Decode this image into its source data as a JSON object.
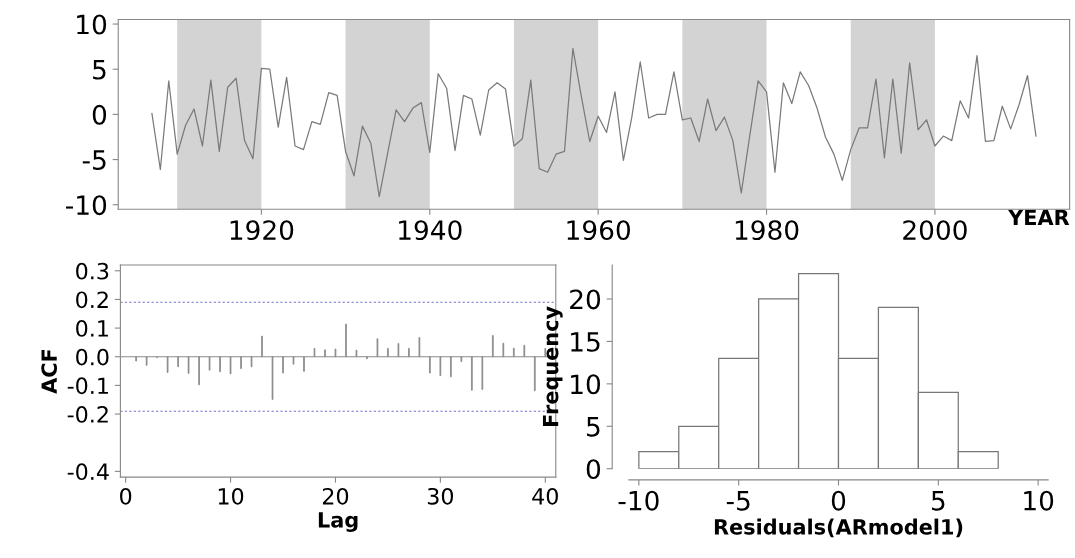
{
  "chart_data": [
    {
      "type": "line",
      "xlabel": "YEAR",
      "x": [
        1907,
        1908,
        1909,
        1910,
        1911,
        1912,
        1913,
        1914,
        1915,
        1916,
        1917,
        1918,
        1919,
        1920,
        1921,
        1922,
        1923,
        1924,
        1925,
        1926,
        1927,
        1928,
        1929,
        1930,
        1931,
        1932,
        1933,
        1934,
        1935,
        1936,
        1937,
        1938,
        1939,
        1940,
        1941,
        1942,
        1943,
        1944,
        1945,
        1946,
        1947,
        1948,
        1949,
        1950,
        1951,
        1952,
        1953,
        1954,
        1955,
        1956,
        1957,
        1958,
        1959,
        1960,
        1961,
        1962,
        1963,
        1964,
        1965,
        1966,
        1967,
        1968,
        1969,
        1970,
        1971,
        1972,
        1973,
        1974,
        1975,
        1976,
        1977,
        1978,
        1979,
        1980,
        1981,
        1982,
        1983,
        1984,
        1985,
        1986,
        1987,
        1988,
        1989,
        1990,
        1991,
        1992,
        1993,
        1994,
        1995,
        1996,
        1997,
        1998,
        1999,
        2000,
        2001,
        2002,
        2003,
        2004,
        2005,
        2006,
        2007,
        2008,
        2009,
        2010,
        2011,
        2012
      ],
      "series": [
        {
          "color": "#7a7a7a",
          "values": [
            0.1,
            -6.1,
            3.7,
            -4.4,
            -1.2,
            0.6,
            -3.5,
            3.8,
            -4.1,
            3.0,
            4.0,
            -2.9,
            -4.9,
            5.1,
            5.0,
            -1.4,
            4.1,
            -3.5,
            -3.9,
            -0.8,
            -1.1,
            2.4,
            2.1,
            -4.1,
            -6.8,
            -1.3,
            -3.2,
            -9.1,
            -4.3,
            0.5,
            -0.8,
            0.7,
            1.3,
            -4.2,
            4.5,
            2.9,
            -4.0,
            2.1,
            1.7,
            -2.3,
            2.7,
            3.5,
            2.8,
            -3.5,
            -2.7,
            3.8,
            -6.0,
            -6.4,
            -4.4,
            -4.1,
            7.3,
            2.0,
            -3.0,
            -0.2,
            -2.0,
            2.5,
            -5.1,
            -0.3,
            5.8,
            -0.4,
            0.0,
            0.0,
            4.7,
            -0.6,
            -0.4,
            -3.0,
            1.7,
            -1.8,
            -0.3,
            -2.9,
            -8.7,
            -2.4,
            3.7,
            2.5,
            -6.4,
            3.5,
            1.2,
            4.7,
            3.2,
            0.7,
            -2.5,
            -4.4,
            -7.3,
            -3.9,
            -1.5,
            -1.5,
            3.9,
            -4.8,
            3.9,
            -4.3,
            5.7,
            -1.7,
            -0.6,
            -3.5,
            -2.4,
            -2.9,
            1.5,
            -0.4,
            6.5,
            -3.0,
            -2.9,
            0.9,
            -1.6,
            1.1,
            4.3,
            -2.4
          ]
        }
      ],
      "bands": [
        {
          "axis": "x",
          "from": 1910,
          "to": 1920,
          "color": "#d3d3d3"
        },
        {
          "axis": "x",
          "from": 1930,
          "to": 1940,
          "color": "#d3d3d3"
        },
        {
          "axis": "x",
          "from": 1950,
          "to": 1960,
          "color": "#d3d3d3"
        },
        {
          "axis": "x",
          "from": 1970,
          "to": 1980,
          "color": "#d3d3d3"
        },
        {
          "axis": "x",
          "from": 1990,
          "to": 2000,
          "color": "#d3d3d3"
        }
      ],
      "xlim": [
        1903,
        2016
      ],
      "xticks": [
        1920,
        1940,
        1960,
        1980,
        2000
      ],
      "ylim": [
        -10.5,
        10.5
      ],
      "yticks": [
        10,
        5,
        0,
        -5,
        -10
      ]
    },
    {
      "type": "bar",
      "xlabel": "Lag",
      "ylabel": "ACF",
      "x": [
        1,
        2,
        3,
        4,
        5,
        6,
        7,
        8,
        9,
        10,
        11,
        12,
        13,
        14,
        15,
        16,
        17,
        18,
        19,
        20,
        21,
        22,
        23,
        24,
        25,
        26,
        27,
        28,
        29,
        30,
        31,
        32,
        33,
        34,
        35,
        36,
        37,
        38,
        39,
        40
      ],
      "series": [
        {
          "color": "#8a8a8a",
          "values": [
            -0.015,
            -0.03,
            -0.003,
            -0.055,
            -0.035,
            -0.058,
            -0.098,
            -0.047,
            -0.052,
            -0.06,
            -0.041,
            -0.035,
            0.072,
            -0.149,
            -0.057,
            -0.026,
            -0.051,
            0.029,
            0.024,
            0.027,
            0.114,
            0.023,
            -0.007,
            0.063,
            0.029,
            0.046,
            0.029,
            0.067,
            -0.057,
            -0.066,
            -0.07,
            -0.017,
            -0.117,
            -0.114,
            0.074,
            0.047,
            0.03,
            0.04,
            -0.119,
            0.029
          ]
        }
      ],
      "ref_lines": [
        {
          "axis": "y",
          "value": 0.19,
          "color": "#6f6fd0",
          "line_style": "dashed"
        },
        {
          "axis": "y",
          "value": -0.19,
          "color": "#6f6fd0",
          "line_style": "dashed"
        }
      ],
      "xlim": [
        -0.5,
        41
      ],
      "xticks": [
        0,
        10,
        20,
        30,
        40
      ],
      "ylim": [
        -0.42,
        0.32
      ],
      "yticks": [
        0.3,
        0.2,
        0.1,
        {
          "value": 0,
          "label": "0.0"
        },
        -0.1,
        -0.2,
        -0.4
      ]
    },
    {
      "type": "histogram",
      "xlabel": "Residuals(ARmodel1)",
      "ylabel": "Frequency",
      "bins": [
        -10,
        -8,
        -6,
        -4,
        -2,
        0,
        2,
        4,
        6,
        8
      ],
      "values": [
        2,
        5,
        13,
        20,
        23,
        13,
        19,
        9,
        2
      ],
      "color": "#ffffff",
      "xlim": [
        -10.5,
        10.5
      ],
      "xticks": [
        -10,
        -5,
        0,
        5,
        10
      ],
      "ylim": [
        0,
        24
      ],
      "yticks": [
        0,
        5,
        10,
        15,
        20
      ]
    }
  ]
}
